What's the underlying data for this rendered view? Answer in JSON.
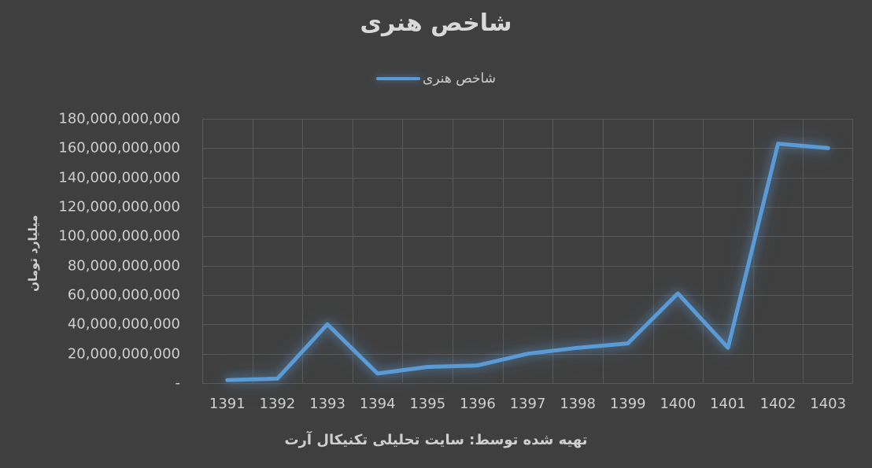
{
  "title": "شاخص هنری",
  "legend": {
    "label": "شاخص هنری"
  },
  "axes": {
    "y_title": "میلیارد تومان",
    "x_title": "تهیه شده توسط: سایت تحلیلی تکنیکال آرت",
    "y_tick_labels": [
      "-",
      "20,000,000,000",
      "40,000,000,000",
      "60,000,000,000",
      "80,000,000,000",
      "100,000,000,000",
      "120,000,000,000",
      "140,000,000,000",
      "160,000,000,000",
      "180,000,000,000"
    ]
  },
  "colors": {
    "background": "#3f3f3f",
    "gridline": "#595959",
    "line": "#5b9bd5",
    "text": "#cfcfcf",
    "title_text": "#d9d9d9",
    "glow": "rgba(91,155,213,0.6)"
  },
  "chart_data": {
    "type": "line",
    "title": "شاخص هنری",
    "categories": [
      "1391",
      "1392",
      "1393",
      "1394",
      "1395",
      "1396",
      "1397",
      "1398",
      "1399",
      "1400",
      "1401",
      "1402",
      "1403"
    ],
    "series": [
      {
        "name": "شاخص هنری",
        "values": [
          2000000000,
          3000000000,
          40000000000,
          6500000000,
          11000000000,
          12000000000,
          20000000000,
          24000000000,
          27000000000,
          61000000000,
          24000000000,
          163000000000,
          160000000000
        ]
      }
    ],
    "xlabel": "تهیه شده توسط: سایت تحلیلی تکنیکال آرت",
    "ylabel": "میلیارد تومان",
    "ylim": [
      0,
      180000000000
    ],
    "y_step": 20000000000,
    "grid": true,
    "legend_position": "top",
    "zero_tick_label": "-"
  }
}
